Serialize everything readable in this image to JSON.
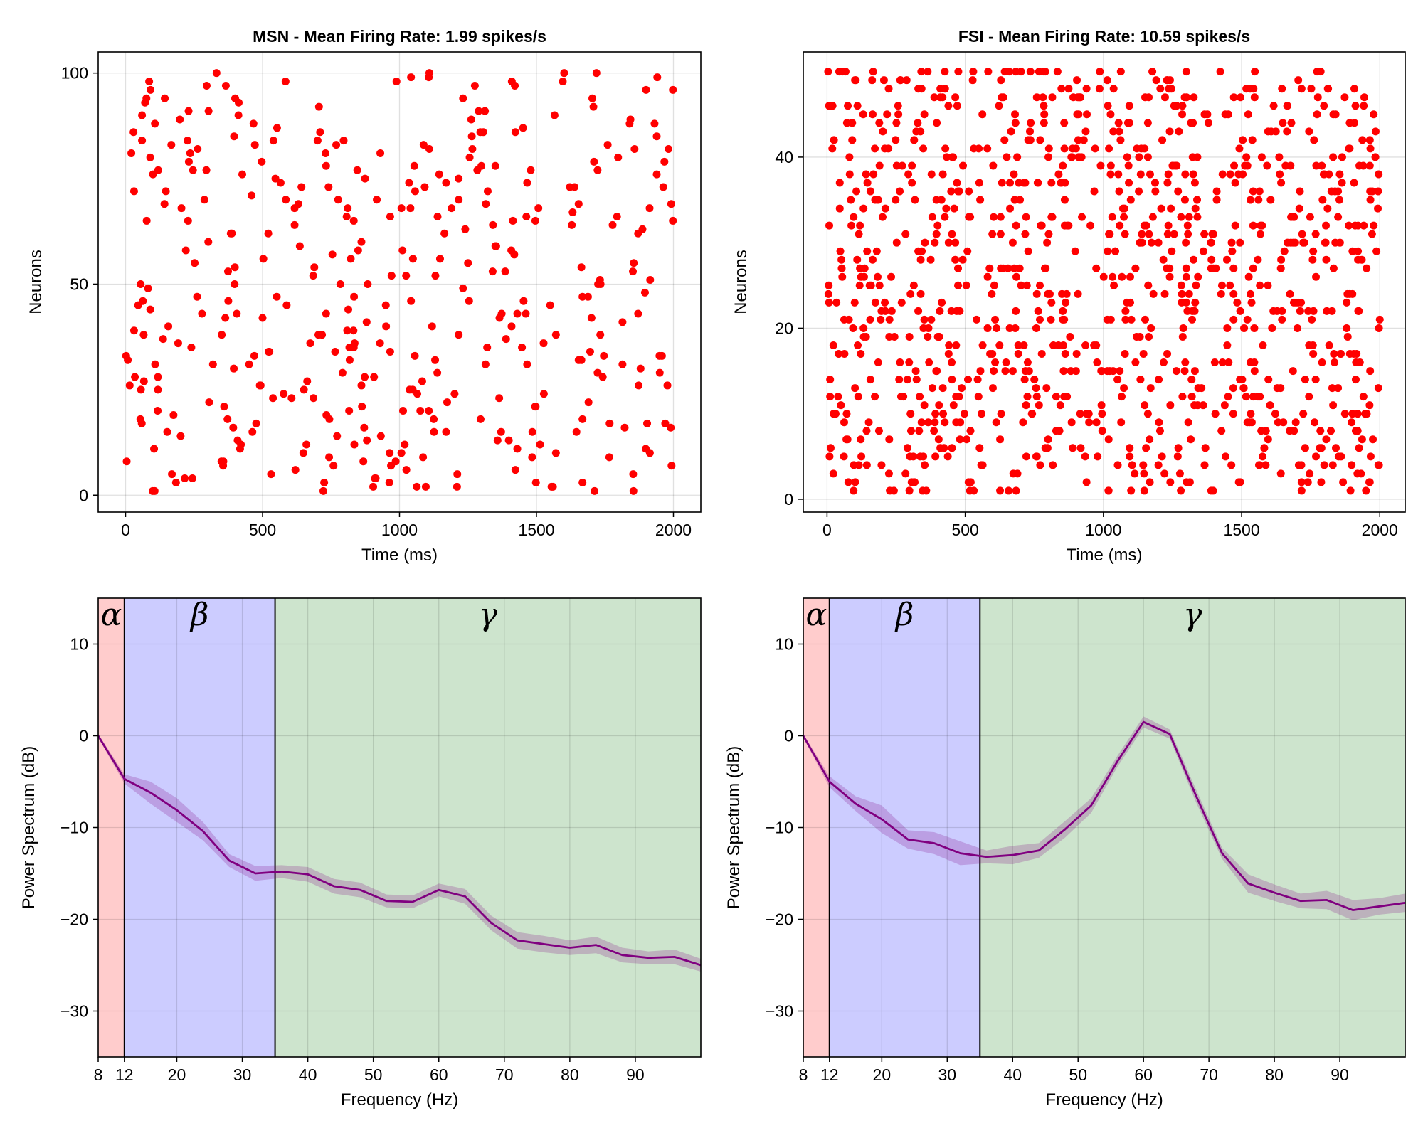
{
  "chart_data": [
    {
      "type": "scatter",
      "title": "MSN - Mean Firing Rate: 1.99 spikes/s",
      "xlabel": "Time (ms)",
      "ylabel": "Neurons",
      "xlim": [
        -100,
        2100
      ],
      "ylim": [
        -4,
        105
      ],
      "xticks": [
        "0",
        "500",
        "1000",
        "1500",
        "2000"
      ],
      "xtick_values": [
        0,
        500,
        1000,
        1500,
        2000
      ],
      "yticks": [
        "0",
        "50",
        "100"
      ],
      "ytick_values": [
        0,
        50,
        100
      ],
      "n_neurons": 100,
      "duration_ms": 2000,
      "mean_rate": 1.99,
      "seed": 7,
      "color": "#ff0000"
    },
    {
      "type": "scatter",
      "title": "FSI - Mean Firing Rate: 10.59 spikes/s",
      "xlabel": "Time (ms)",
      "ylabel": "Neurons",
      "xlim": [
        -86,
        2092
      ],
      "ylim": [
        -1.5,
        52.3
      ],
      "xticks": [
        "0",
        "500",
        "1000",
        "1500",
        "2000"
      ],
      "xtick_values": [
        0,
        500,
        1000,
        1500,
        2000
      ],
      "yticks": [
        "0",
        "20",
        "40"
      ],
      "ytick_values": [
        0,
        20,
        40
      ],
      "n_neurons": 50,
      "duration_ms": 2000,
      "mean_rate": 10.59,
      "seed": 13,
      "color": "#ff0000"
    },
    {
      "type": "line",
      "xlabel": "Frequency (Hz)",
      "ylabel": "Power Spectrum (dB)",
      "xlim": [
        8,
        100
      ],
      "ylim": [
        -35,
        15
      ],
      "xticks": [
        "8",
        "12",
        "20",
        "30",
        "40",
        "50",
        "60",
        "70",
        "80",
        "90"
      ],
      "xtick_values": [
        8,
        12,
        20,
        30,
        40,
        50,
        60,
        70,
        80,
        90
      ],
      "yticks": [
        "10",
        "0",
        "−10",
        "−20",
        "−30"
      ],
      "ytick_values": [
        10,
        0,
        -10,
        -20,
        -30
      ],
      "bands": [
        {
          "label": "α",
          "from": 8,
          "to": 12,
          "color": "#ffcccc"
        },
        {
          "label": "β",
          "from": 12,
          "to": 35,
          "color": "#ccccff"
        },
        {
          "label": "γ",
          "from": 35,
          "to": 100,
          "color": "#cde4cd"
        }
      ],
      "x": [
        8,
        12,
        16,
        20,
        24,
        28,
        32,
        36,
        40,
        44,
        48,
        52,
        56,
        60,
        64,
        68,
        72,
        76,
        80,
        84,
        88,
        92,
        96,
        100
      ],
      "y": [
        0,
        -4.7,
        -6.2,
        -8.1,
        -10.4,
        -13.6,
        -15.0,
        -14.8,
        -15.1,
        -16.4,
        -16.8,
        -18.0,
        -18.1,
        -16.8,
        -17.5,
        -20.4,
        -22.3,
        -22.7,
        -23.1,
        -22.8,
        -23.9,
        -24.2,
        -24.1,
        -25.0
      ],
      "err": [
        0.2,
        0.5,
        1.2,
        1.3,
        1.0,
        0.7,
        0.8,
        0.7,
        0.8,
        0.8,
        0.8,
        0.7,
        0.7,
        0.7,
        0.8,
        0.8,
        0.9,
        0.9,
        0.8,
        0.9,
        0.8,
        0.7,
        0.8,
        0.7
      ],
      "line_color": "#800080",
      "band_color": "#800080"
    },
    {
      "type": "line",
      "xlabel": "Frequency (Hz)",
      "ylabel": "Power Spectrum (dB)",
      "xlim": [
        8,
        100
      ],
      "ylim": [
        -35,
        15
      ],
      "xticks": [
        "8",
        "12",
        "20",
        "30",
        "40",
        "50",
        "60",
        "70",
        "80",
        "90"
      ],
      "xtick_values": [
        8,
        12,
        20,
        30,
        40,
        50,
        60,
        70,
        80,
        90
      ],
      "yticks": [
        "10",
        "0",
        "−10",
        "−20",
        "−30"
      ],
      "ytick_values": [
        10,
        0,
        -10,
        -20,
        -30
      ],
      "bands": [
        {
          "label": "α",
          "from": 8,
          "to": 12,
          "color": "#ffcccc"
        },
        {
          "label": "β",
          "from": 12,
          "to": 35,
          "color": "#ccccff"
        },
        {
          "label": "γ",
          "from": 35,
          "to": 100,
          "color": "#cde4cd"
        }
      ],
      "x": [
        8,
        12,
        16,
        20,
        24,
        28,
        32,
        36,
        40,
        44,
        48,
        52,
        56,
        60,
        64,
        68,
        72,
        76,
        80,
        84,
        88,
        92,
        96,
        100
      ],
      "y": [
        0,
        -5.0,
        -7.4,
        -9.1,
        -11.3,
        -11.7,
        -12.8,
        -13.2,
        -13.0,
        -12.5,
        -10.2,
        -7.6,
        -2.8,
        1.5,
        0.2,
        -6.5,
        -12.8,
        -16.1,
        -17.1,
        -18.0,
        -17.9,
        -19.0,
        -18.6,
        -18.2
      ],
      "err": [
        0.2,
        0.6,
        0.8,
        1.5,
        1.0,
        1.2,
        1.3,
        0.7,
        1.0,
        0.8,
        0.9,
        0.8,
        0.6,
        0.6,
        0.5,
        0.7,
        0.6,
        1.0,
        0.9,
        0.8,
        1.0,
        1.1,
        0.9,
        1.0
      ],
      "line_color": "#800080",
      "band_color": "#800080"
    }
  ]
}
